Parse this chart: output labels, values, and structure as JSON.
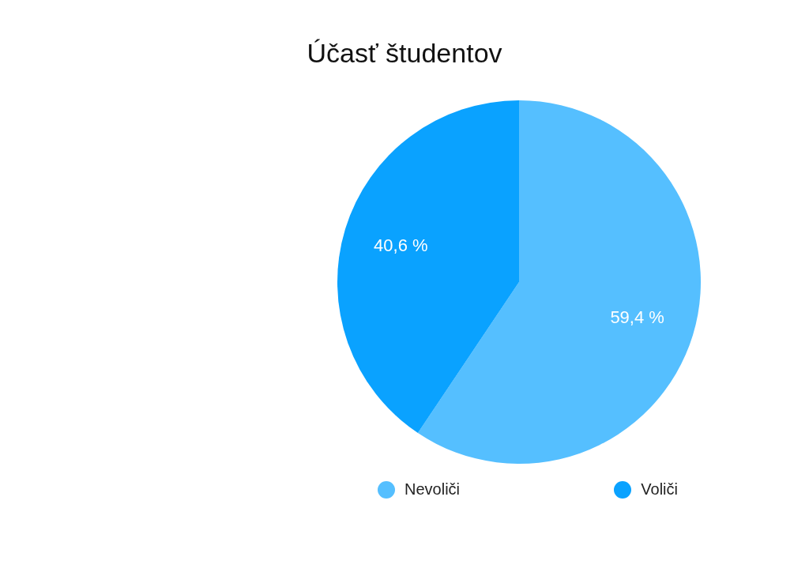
{
  "chart_data": {
    "type": "pie",
    "title": "Účasť študentov",
    "categories": [
      "Nevoliči",
      "Voliči"
    ],
    "values": [
      59.4,
      40.6
    ],
    "colors": [
      "#55bfff",
      "#0aa2ff"
    ],
    "value_labels": [
      "59,4 %",
      "40,6 %"
    ],
    "legend": "bottom"
  }
}
